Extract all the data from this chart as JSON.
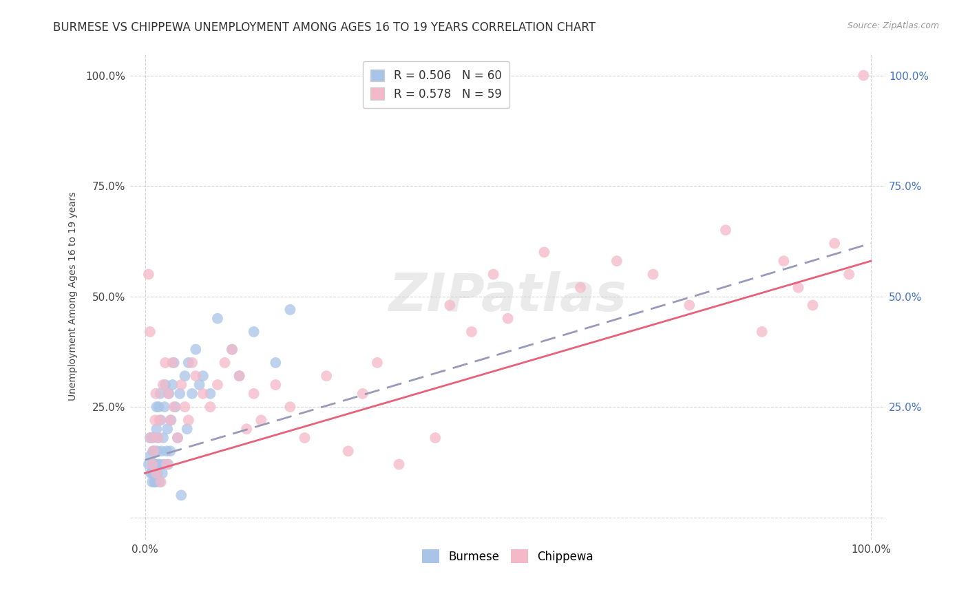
{
  "title": "BURMESE VS CHIPPEWA UNEMPLOYMENT AMONG AGES 16 TO 19 YEARS CORRELATION CHART",
  "source": "Source: ZipAtlas.com",
  "ylabel": "Unemployment Among Ages 16 to 19 years",
  "burmese_color": "#a8c4e8",
  "chippewa_color": "#f5b8c8",
  "burmese_line_color": "#4472c4",
  "chippewa_line_color": "#e8607a",
  "R_burmese": 0.506,
  "N_burmese": 60,
  "R_chippewa": 0.578,
  "N_chippewa": 59,
  "xlim": [
    -0.02,
    1.02
  ],
  "ylim": [
    -0.05,
    1.05
  ],
  "xtick_positions": [
    0.0,
    1.0
  ],
  "xtick_labels": [
    "0.0%",
    "100.0%"
  ],
  "ytick_positions": [
    0.0,
    0.25,
    0.5,
    0.75,
    1.0
  ],
  "ytick_labels_left": [
    "",
    "25.0%",
    "50.0%",
    "75.0%",
    "100.0%"
  ],
  "ytick_labels_right": [
    "",
    "25.0%",
    "50.0%",
    "75.0%",
    "100.0%"
  ],
  "background_color": "#ffffff",
  "grid_color": "#d0d0d0",
  "watermark": "ZIPatlas",
  "burmese_scatter_x": [
    0.005,
    0.007,
    0.008,
    0.008,
    0.01,
    0.01,
    0.01,
    0.011,
    0.011,
    0.012,
    0.012,
    0.013,
    0.013,
    0.014,
    0.014,
    0.015,
    0.015,
    0.016,
    0.016,
    0.017,
    0.017,
    0.018,
    0.018,
    0.019,
    0.02,
    0.02,
    0.021,
    0.022,
    0.023,
    0.024,
    0.025,
    0.026,
    0.027,
    0.028,
    0.03,
    0.031,
    0.032,
    0.033,
    0.035,
    0.036,
    0.038,
    0.04,
    0.042,
    0.045,
    0.048,
    0.05,
    0.055,
    0.058,
    0.06,
    0.065,
    0.07,
    0.075,
    0.08,
    0.09,
    0.1,
    0.12,
    0.13,
    0.15,
    0.18,
    0.2
  ],
  "burmese_scatter_y": [
    0.12,
    0.18,
    0.1,
    0.14,
    0.08,
    0.1,
    0.12,
    0.15,
    0.18,
    0.1,
    0.12,
    0.08,
    0.15,
    0.1,
    0.12,
    0.08,
    0.12,
    0.2,
    0.25,
    0.1,
    0.15,
    0.12,
    0.18,
    0.25,
    0.08,
    0.12,
    0.28,
    0.22,
    0.15,
    0.1,
    0.18,
    0.12,
    0.25,
    0.3,
    0.15,
    0.2,
    0.12,
    0.28,
    0.15,
    0.22,
    0.3,
    0.35,
    0.25,
    0.18,
    0.28,
    0.05,
    0.32,
    0.2,
    0.35,
    0.28,
    0.38,
    0.3,
    0.32,
    0.28,
    0.45,
    0.38,
    0.32,
    0.42,
    0.35,
    0.47
  ],
  "chippewa_scatter_x": [
    0.005,
    0.007,
    0.008,
    0.01,
    0.012,
    0.014,
    0.015,
    0.016,
    0.018,
    0.02,
    0.022,
    0.025,
    0.028,
    0.03,
    0.032,
    0.035,
    0.038,
    0.04,
    0.045,
    0.05,
    0.055,
    0.06,
    0.065,
    0.07,
    0.08,
    0.09,
    0.1,
    0.11,
    0.12,
    0.13,
    0.14,
    0.15,
    0.16,
    0.18,
    0.2,
    0.22,
    0.25,
    0.28,
    0.3,
    0.32,
    0.35,
    0.4,
    0.42,
    0.45,
    0.48,
    0.5,
    0.55,
    0.6,
    0.65,
    0.7,
    0.75,
    0.8,
    0.85,
    0.88,
    0.9,
    0.92,
    0.95,
    0.97,
    0.99
  ],
  "chippewa_scatter_y": [
    0.55,
    0.42,
    0.18,
    0.12,
    0.15,
    0.22,
    0.28,
    0.1,
    0.18,
    0.22,
    0.08,
    0.3,
    0.35,
    0.12,
    0.28,
    0.22,
    0.35,
    0.25,
    0.18,
    0.3,
    0.25,
    0.22,
    0.35,
    0.32,
    0.28,
    0.25,
    0.3,
    0.35,
    0.38,
    0.32,
    0.2,
    0.28,
    0.22,
    0.3,
    0.25,
    0.18,
    0.32,
    0.15,
    0.28,
    0.35,
    0.12,
    0.18,
    0.48,
    0.42,
    0.55,
    0.45,
    0.6,
    0.52,
    0.58,
    0.55,
    0.48,
    0.65,
    0.42,
    0.58,
    0.52,
    0.48,
    0.62,
    0.55,
    1.0
  ],
  "burmese_line_start_x": 0.0,
  "burmese_line_start_y": 0.13,
  "burmese_line_end_x": 1.0,
  "burmese_line_end_y": 0.62,
  "chippewa_line_start_x": 0.0,
  "chippewa_line_start_y": 0.1,
  "chippewa_line_end_x": 1.0,
  "chippewa_line_end_y": 0.58,
  "title_fontsize": 12,
  "axis_label_fontsize": 10,
  "tick_fontsize": 11,
  "legend_fontsize": 12
}
